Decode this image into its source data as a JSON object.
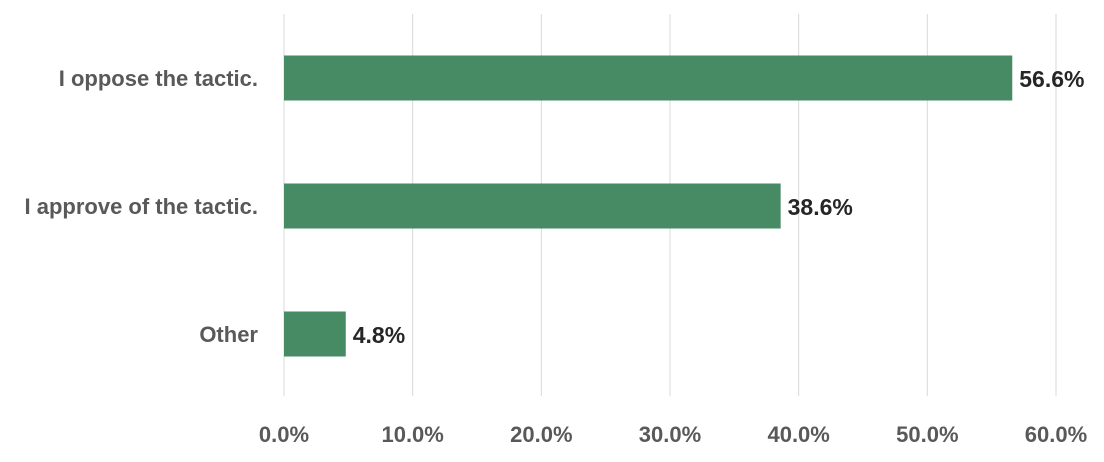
{
  "chart_data": {
    "type": "bar",
    "orientation": "horizontal",
    "categories": [
      "I oppose the tactic.",
      "I approve of the tactic.",
      "Other"
    ],
    "values": [
      56.6,
      38.6,
      4.8
    ],
    "value_labels": [
      "56.6%",
      "38.6%",
      "4.8%"
    ],
    "x_ticks": [
      0,
      10,
      20,
      30,
      40,
      50,
      60
    ],
    "x_tick_labels": [
      "0.0%",
      "10.0%",
      "20.0%",
      "30.0%",
      "40.0%",
      "50.0%",
      "60.0%"
    ],
    "xlim": [
      0,
      60
    ],
    "grid": true,
    "legend": "none",
    "bar_color": "#468b64",
    "grid_color": "#d9d9d9",
    "label_color": "#595959",
    "value_label_color": "#262626"
  }
}
